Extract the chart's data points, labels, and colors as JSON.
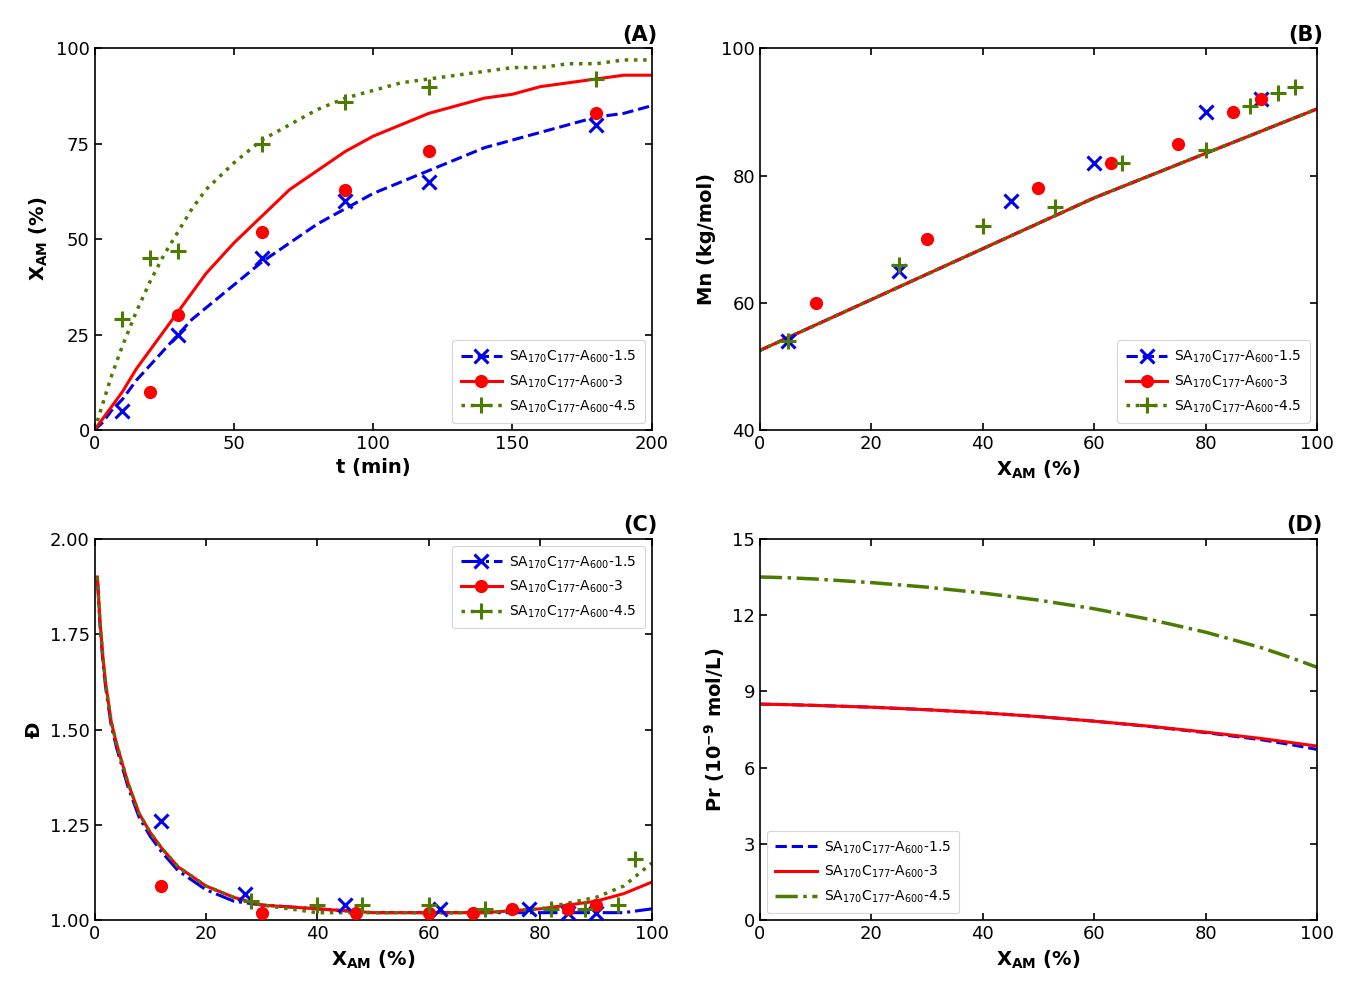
{
  "panel_A": {
    "title": "(A)",
    "xlabel": "t (min)",
    "ylabel": "X$_\\mathregular{AM}$ (%)",
    "xlim": [
      0,
      200
    ],
    "ylim": [
      0,
      100
    ],
    "xticks": [
      0,
      50,
      100,
      150,
      200
    ],
    "yticks": [
      0,
      25,
      50,
      75,
      100
    ],
    "legend_loc": "lower right",
    "series": [
      {
        "label": "SA$_\\mathregular{170}$C$_\\mathregular{177}$-A$_\\mathregular{600}$-1.5",
        "color": "#0000EE",
        "linestyle": "--",
        "linewidth": 2.2,
        "marker": "x",
        "markersize": 10,
        "markeredgewidth": 2.2,
        "scatter_x": [
          10,
          30,
          60,
          90,
          120,
          180
        ],
        "scatter_y": [
          5,
          25,
          45,
          60,
          65,
          80
        ],
        "fit_x": [
          0,
          3,
          6,
          10,
          15,
          20,
          25,
          30,
          35,
          40,
          50,
          60,
          70,
          80,
          90,
          100,
          110,
          120,
          130,
          140,
          150,
          160,
          170,
          180,
          190,
          200
        ],
        "fit_y": [
          0,
          2,
          5,
          8,
          13,
          17,
          21,
          25,
          29,
          32,
          38,
          44,
          49,
          54,
          58,
          62,
          65,
          68,
          71,
          74,
          76,
          78,
          80,
          82,
          83,
          85
        ]
      },
      {
        "label": "SA$_\\mathregular{170}$C$_\\mathregular{177}$-A$_\\mathregular{600}$-3",
        "color": "#FF0000",
        "linestyle": "-",
        "linewidth": 2.2,
        "marker": "o",
        "markersize": 8,
        "markeredgewidth": 1.5,
        "scatter_x": [
          20,
          30,
          60,
          90,
          120,
          180
        ],
        "scatter_y": [
          10,
          30,
          52,
          63,
          73,
          83
        ],
        "fit_x": [
          0,
          3,
          6,
          10,
          15,
          20,
          25,
          30,
          35,
          40,
          50,
          60,
          70,
          80,
          90,
          100,
          110,
          120,
          130,
          140,
          150,
          160,
          170,
          180,
          190,
          200
        ],
        "fit_y": [
          0,
          3,
          6,
          10,
          16,
          21,
          26,
          31,
          36,
          41,
          49,
          56,
          63,
          68,
          73,
          77,
          80,
          83,
          85,
          87,
          88,
          90,
          91,
          92,
          93,
          93
        ]
      },
      {
        "label": "SA$_\\mathregular{170}$C$_\\mathregular{177}$-A$_\\mathregular{600}$-4.5",
        "color": "#4B7B00",
        "linestyle": ":",
        "linewidth": 2.5,
        "marker": "+",
        "markersize": 11,
        "markeredgewidth": 2.2,
        "scatter_x": [
          10,
          20,
          30,
          60,
          90,
          120,
          180
        ],
        "scatter_y": [
          29,
          45,
          47,
          75,
          86,
          90,
          92
        ],
        "fit_x": [
          0,
          3,
          6,
          10,
          15,
          20,
          25,
          30,
          35,
          40,
          50,
          60,
          70,
          80,
          90,
          100,
          110,
          120,
          130,
          140,
          150,
          160,
          170,
          180,
          190,
          200
        ],
        "fit_y": [
          0,
          7,
          14,
          22,
          31,
          39,
          46,
          52,
          58,
          63,
          70,
          76,
          80,
          84,
          87,
          89,
          91,
          92,
          93,
          94,
          95,
          95,
          96,
          96,
          97,
          97
        ]
      }
    ]
  },
  "panel_B": {
    "title": "(B)",
    "xlabel": "X$_\\mathregular{AM}$ (%)",
    "ylabel": "Mn (kg/mol)",
    "xlim": [
      0,
      100
    ],
    "ylim": [
      40,
      100
    ],
    "xticks": [
      0,
      20,
      40,
      60,
      80,
      100
    ],
    "yticks": [
      40,
      60,
      80,
      100
    ],
    "legend_loc": "lower right",
    "series": [
      {
        "label": "SA$_\\mathregular{170}$C$_\\mathregular{177}$-A$_\\mathregular{600}$-1.5",
        "color": "#0000EE",
        "linestyle": "--",
        "linewidth": 2.2,
        "marker": "x",
        "markersize": 10,
        "markeredgewidth": 2.2,
        "scatter_x": [
          5,
          25,
          45,
          60,
          80,
          90
        ],
        "scatter_y": [
          54,
          65,
          76,
          82,
          90,
          92
        ],
        "fit_x": [
          0,
          5,
          10,
          20,
          30,
          40,
          50,
          60,
          70,
          80,
          90,
          100
        ],
        "fit_y": [
          52.5,
          54.5,
          56.5,
          60.5,
          64.5,
          68.5,
          72.5,
          76.5,
          80.0,
          83.5,
          87.0,
          90.5
        ]
      },
      {
        "label": "SA$_\\mathregular{170}$C$_\\mathregular{177}$-A$_\\mathregular{600}$-3",
        "color": "#FF0000",
        "linestyle": "-",
        "linewidth": 2.2,
        "marker": "o",
        "markersize": 8,
        "markeredgewidth": 1.5,
        "scatter_x": [
          10,
          30,
          50,
          63,
          75,
          85,
          90
        ],
        "scatter_y": [
          60,
          70,
          78,
          82,
          85,
          90,
          92
        ],
        "fit_x": [
          0,
          5,
          10,
          20,
          30,
          40,
          50,
          60,
          70,
          80,
          90,
          100
        ],
        "fit_y": [
          52.5,
          54.5,
          56.5,
          60.5,
          64.5,
          68.5,
          72.5,
          76.5,
          80.0,
          83.5,
          87.0,
          90.5
        ]
      },
      {
        "label": "SA$_\\mathregular{170}$C$_\\mathregular{177}$-A$_\\mathregular{600}$-4.5",
        "color": "#4B7B00",
        "linestyle": ":",
        "linewidth": 2.5,
        "marker": "+",
        "markersize": 11,
        "markeredgewidth": 2.2,
        "scatter_x": [
          5,
          25,
          40,
          53,
          65,
          80,
          88,
          93,
          96
        ],
        "scatter_y": [
          54,
          66,
          72,
          75,
          82,
          84,
          91,
          93,
          94
        ],
        "fit_x": [
          0,
          5,
          10,
          20,
          30,
          40,
          50,
          60,
          70,
          80,
          90,
          100
        ],
        "fit_y": [
          52.5,
          54.5,
          56.5,
          60.5,
          64.5,
          68.5,
          72.5,
          76.5,
          80.0,
          83.5,
          87.0,
          90.5
        ]
      }
    ]
  },
  "panel_C": {
    "title": "(C)",
    "xlabel": "X$_\\mathregular{AM}$ (%)",
    "ylabel": "Đ",
    "xlim": [
      0,
      100
    ],
    "ylim": [
      1.0,
      2.0
    ],
    "xticks": [
      0,
      20,
      40,
      60,
      80,
      100
    ],
    "yticks": [
      1.0,
      1.25,
      1.5,
      1.75,
      2.0
    ],
    "legend_loc": "upper right",
    "series": [
      {
        "label": "SA$_\\mathregular{170}$C$_\\mathregular{177}$-A$_\\mathregular{600}$-1.5",
        "color": "#0000EE",
        "linestyle": "-.",
        "linewidth": 2.2,
        "marker": "x",
        "markersize": 10,
        "markeredgewidth": 2.2,
        "scatter_x": [
          12,
          27,
          45,
          62,
          78,
          85,
          90
        ],
        "scatter_y": [
          1.26,
          1.07,
          1.04,
          1.03,
          1.03,
          1.02,
          1.02
        ],
        "fit_x": [
          0.5,
          1,
          1.5,
          2,
          2.5,
          3,
          4,
          5,
          6,
          7,
          8,
          10,
          12,
          15,
          20,
          25,
          30,
          40,
          50,
          60,
          70,
          80,
          90,
          95,
          100
        ],
        "fit_y": [
          1.9,
          1.77,
          1.68,
          1.61,
          1.56,
          1.51,
          1.45,
          1.4,
          1.35,
          1.31,
          1.27,
          1.22,
          1.18,
          1.13,
          1.08,
          1.05,
          1.04,
          1.03,
          1.02,
          1.02,
          1.02,
          1.02,
          1.02,
          1.02,
          1.03
        ]
      },
      {
        "label": "SA$_\\mathregular{170}$C$_\\mathregular{177}$-A$_\\mathregular{600}$-3",
        "color": "#FF0000",
        "linestyle": "-",
        "linewidth": 2.2,
        "marker": "o",
        "markersize": 8,
        "markeredgewidth": 1.5,
        "scatter_x": [
          12,
          30,
          47,
          60,
          68,
          75,
          85,
          90
        ],
        "scatter_y": [
          1.09,
          1.02,
          1.02,
          1.02,
          1.02,
          1.03,
          1.03,
          1.04
        ],
        "fit_x": [
          0.5,
          1,
          1.5,
          2,
          2.5,
          3,
          4,
          5,
          6,
          7,
          8,
          10,
          12,
          15,
          20,
          25,
          30,
          40,
          50,
          60,
          70,
          80,
          90,
          95,
          100
        ],
        "fit_y": [
          1.9,
          1.78,
          1.69,
          1.62,
          1.57,
          1.52,
          1.46,
          1.41,
          1.36,
          1.32,
          1.28,
          1.23,
          1.19,
          1.14,
          1.09,
          1.06,
          1.04,
          1.03,
          1.02,
          1.02,
          1.02,
          1.03,
          1.05,
          1.07,
          1.1
        ]
      },
      {
        "label": "SA$_\\mathregular{170}$C$_\\mathregular{177}$-A$_\\mathregular{600}$-4.5",
        "color": "#4B7B00",
        "linestyle": ":",
        "linewidth": 2.5,
        "marker": "+",
        "markersize": 11,
        "markeredgewidth": 2.2,
        "scatter_x": [
          28,
          40,
          48,
          60,
          70,
          82,
          88,
          94,
          97
        ],
        "scatter_y": [
          1.05,
          1.04,
          1.04,
          1.04,
          1.03,
          1.03,
          1.03,
          1.04,
          1.16
        ],
        "fit_x": [
          0.5,
          1,
          1.5,
          2,
          2.5,
          3,
          4,
          5,
          6,
          7,
          8,
          10,
          12,
          15,
          20,
          25,
          30,
          40,
          50,
          60,
          70,
          80,
          90,
          95,
          100
        ],
        "fit_y": [
          1.9,
          1.78,
          1.69,
          1.62,
          1.57,
          1.52,
          1.46,
          1.41,
          1.36,
          1.32,
          1.28,
          1.23,
          1.19,
          1.14,
          1.09,
          1.06,
          1.04,
          1.02,
          1.02,
          1.02,
          1.02,
          1.03,
          1.06,
          1.09,
          1.15
        ]
      }
    ]
  },
  "panel_D": {
    "title": "(D)",
    "xlabel": "X$_\\mathregular{AM}$ (%)",
    "ylabel": "Pr (10$^\\mathregular{-9}$ mol/L)",
    "xlim": [
      0,
      100
    ],
    "ylim": [
      0,
      15
    ],
    "xticks": [
      0,
      20,
      40,
      60,
      80,
      100
    ],
    "yticks": [
      0,
      3,
      6,
      9,
      12,
      15
    ],
    "legend_loc": "lower left",
    "series": [
      {
        "label": "SA$_\\mathregular{170}$C$_\\mathregular{177}$-A$_\\mathregular{600}$-1.5",
        "color": "#0000EE",
        "linestyle": "--",
        "linewidth": 2.2,
        "fit_x": [
          0,
          5,
          10,
          20,
          30,
          40,
          50,
          60,
          70,
          80,
          90,
          95,
          100
        ],
        "fit_y": [
          8.5,
          8.48,
          8.45,
          8.38,
          8.28,
          8.16,
          8.01,
          7.83,
          7.62,
          7.38,
          7.1,
          6.92,
          6.72
        ]
      },
      {
        "label": "SA$_\\mathregular{170}$C$_\\mathregular{177}$-A$_\\mathregular{600}$-3",
        "color": "#FF0000",
        "linestyle": "-",
        "linewidth": 2.2,
        "fit_x": [
          0,
          5,
          10,
          20,
          30,
          40,
          50,
          60,
          70,
          80,
          90,
          95,
          100
        ],
        "fit_y": [
          8.5,
          8.48,
          8.45,
          8.38,
          8.28,
          8.16,
          8.01,
          7.83,
          7.63,
          7.4,
          7.15,
          7.0,
          6.85
        ]
      },
      {
        "label": "SA$_\\mathregular{170}$C$_\\mathregular{177}$-A$_\\mathregular{600}$-4.5",
        "color": "#4B7B00",
        "linestyle": "-.",
        "linewidth": 2.5,
        "fit_x": [
          0,
          5,
          10,
          20,
          30,
          40,
          50,
          60,
          70,
          80,
          90,
          95,
          100
        ],
        "fit_y": [
          13.5,
          13.47,
          13.42,
          13.28,
          13.1,
          12.87,
          12.59,
          12.25,
          11.83,
          11.33,
          10.72,
          10.35,
          9.95
        ]
      }
    ]
  }
}
